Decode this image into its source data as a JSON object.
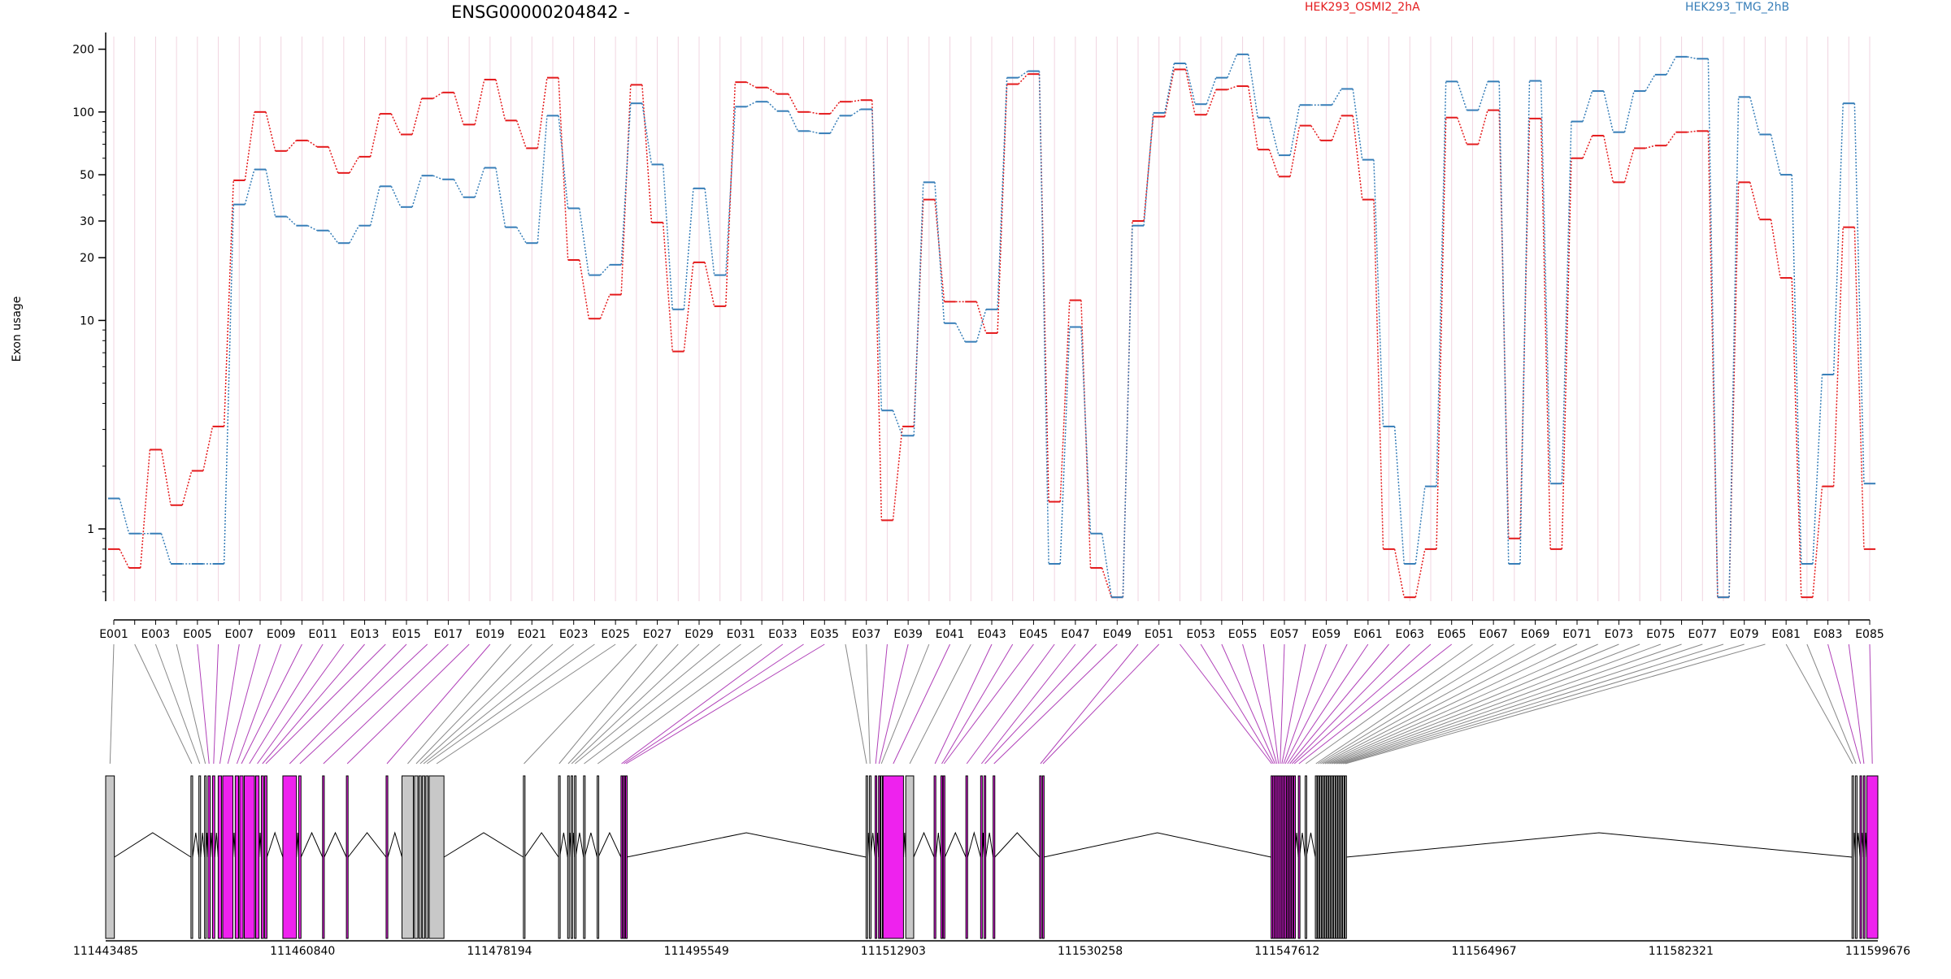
{
  "chart_data": {
    "type": "line",
    "title": "ENSG00000204842 -",
    "ylabel": "Exon usage",
    "yscale": "log",
    "ylim": [
      0.45,
      230
    ],
    "y_ticks": [
      1,
      10,
      20,
      30,
      50,
      100,
      200
    ],
    "y_tick_labels": [
      "1",
      "10",
      "20",
      "30",
      "50",
      "100",
      "200"
    ],
    "categories": [
      "E001",
      "E002",
      "E003",
      "E004",
      "E005",
      "E006",
      "E007",
      "E008",
      "E009",
      "E010",
      "E011",
      "E012",
      "E013",
      "E014",
      "E015",
      "E016",
      "E017",
      "E018",
      "E019",
      "E020",
      "E021",
      "E022",
      "E023",
      "E024",
      "E025",
      "E026",
      "E027",
      "E028",
      "E029",
      "E030",
      "E031",
      "E032",
      "E033",
      "E034",
      "E035",
      "E036",
      "E037",
      "E038",
      "E039",
      "E040",
      "E041",
      "E042",
      "E043",
      "E044",
      "E045",
      "E046",
      "E047",
      "E048",
      "E049",
      "E050",
      "E051",
      "E052",
      "E053",
      "E054",
      "E055",
      "E056",
      "E057",
      "E058",
      "E059",
      "E060",
      "E061",
      "E062",
      "E063",
      "E064",
      "E065",
      "E066",
      "E067",
      "E068",
      "E069",
      "E070",
      "E071",
      "E072",
      "E073",
      "E074",
      "E075",
      "E076",
      "E077",
      "E078",
      "E079",
      "E080",
      "E081",
      "E082",
      "E083",
      "E084",
      "E085"
    ],
    "series": [
      {
        "name": "HEK293_OSMI2_2hA",
        "color": "#e41a1c",
        "values": [
          0.8,
          0.65,
          2.4,
          1.3,
          1.9,
          3.1,
          47,
          100,
          65,
          73,
          68,
          51,
          61,
          98,
          78,
          116,
          124,
          87,
          143,
          91,
          67,
          146,
          19.5,
          10.2,
          13.3,
          135,
          29.5,
          7.1,
          19,
          11.7,
          139,
          131,
          122,
          100,
          98,
          112,
          114,
          1.1,
          3.1,
          38,
          12.3,
          12.3,
          8.7,
          136,
          152,
          1.35,
          12.5,
          0.65,
          0.47,
          30,
          95,
          160,
          97,
          128,
          133,
          66,
          49,
          86,
          73,
          96,
          38,
          0.8,
          0.47,
          0.8,
          94,
          70,
          102,
          0.9,
          93,
          0.8,
          60,
          77,
          46,
          67,
          69,
          80,
          81,
          0.47,
          46,
          30.5,
          16,
          0.47,
          1.6,
          28,
          0.8
        ]
      },
      {
        "name": "HEK293_TMG_2hB",
        "color": "#377eb8",
        "values": [
          1.4,
          0.95,
          0.95,
          0.68,
          0.68,
          0.68,
          36,
          53,
          31.5,
          28.5,
          27,
          23.5,
          28.5,
          44,
          35,
          49.5,
          47.5,
          39,
          54,
          28,
          23.5,
          96,
          34.5,
          16.5,
          18.5,
          110,
          56,
          11.3,
          43,
          16.5,
          106,
          112,
          101,
          81,
          79,
          96,
          103,
          3.7,
          2.8,
          46,
          9.7,
          7.9,
          11.3,
          146,
          157,
          0.68,
          9.3,
          0.95,
          0.47,
          28.5,
          99,
          171,
          109,
          146,
          189,
          94,
          62,
          108,
          108,
          129,
          59,
          3.1,
          0.68,
          1.6,
          140,
          102,
          140,
          0.68,
          141,
          1.65,
          90,
          126,
          80,
          126,
          151,
          184,
          180,
          0.47,
          118,
          78,
          50,
          0.68,
          5.5,
          110,
          1.65
        ]
      }
    ],
    "legend": [
      {
        "label": "HEK293_OSMI2_2hA",
        "color": "#e41a1c"
      },
      {
        "label": "HEK293_TMG_2hB",
        "color": "#377eb8"
      }
    ],
    "legend_position": "top-right",
    "genomic_axis": {
      "tick_labels": [
        "111443485",
        "111460840",
        "111478194",
        "111495549",
        "111512903",
        "111530258",
        "111547612",
        "111564967",
        "111582321",
        "111599676"
      ],
      "range": [
        111443485,
        111599676
      ]
    },
    "gene_model": {
      "colors": {
        "default": "#c8c8c8",
        "significant": "#ee22ee",
        "connector": "#b040b8",
        "connector_default": "#888888"
      },
      "exons": [
        {
          "id": "E001",
          "start": 111443485,
          "end": 111444250,
          "sig": false
        },
        {
          "id": "E002",
          "start": 111451000,
          "end": 111451150,
          "sig": false
        },
        {
          "id": "E003",
          "start": 111451700,
          "end": 111451850,
          "sig": false
        },
        {
          "id": "E004",
          "start": 111452200,
          "end": 111452340,
          "sig": false
        },
        {
          "id": "E005",
          "start": 111452500,
          "end": 111452700,
          "sig": true
        },
        {
          "id": "E006",
          "start": 111452900,
          "end": 111453100,
          "sig": true
        },
        {
          "id": "E007",
          "start": 111453400,
          "end": 111453700,
          "sig": true
        },
        {
          "id": "E008",
          "start": 111453800,
          "end": 111454700,
          "sig": true
        },
        {
          "id": "E009",
          "start": 111454900,
          "end": 111455200,
          "sig": true
        },
        {
          "id": "E010",
          "start": 111455300,
          "end": 111455600,
          "sig": true
        },
        {
          "id": "E011",
          "start": 111455700,
          "end": 111456600,
          "sig": true
        },
        {
          "id": "E012",
          "start": 111456700,
          "end": 111457000,
          "sig": true
        },
        {
          "id": "E013",
          "start": 111457200,
          "end": 111457400,
          "sig": true
        },
        {
          "id": "E014",
          "start": 111457500,
          "end": 111457700,
          "sig": true
        },
        {
          "id": "E015",
          "start": 111459100,
          "end": 111460300,
          "sig": true
        },
        {
          "id": "E016",
          "start": 111460500,
          "end": 111460700,
          "sig": true
        },
        {
          "id": "E017",
          "start": 111462600,
          "end": 111462750,
          "sig": true
        },
        {
          "id": "E018",
          "start": 111464700,
          "end": 111464850,
          "sig": true
        },
        {
          "id": "E019",
          "start": 111468200,
          "end": 111468350,
          "sig": true
        },
        {
          "id": "E020",
          "start": 111469600,
          "end": 111470600,
          "sig": false
        },
        {
          "id": "E021",
          "start": 111470700,
          "end": 111471000,
          "sig": false
        },
        {
          "id": "E022",
          "start": 111471100,
          "end": 111471300,
          "sig": false
        },
        {
          "id": "E023",
          "start": 111471400,
          "end": 111471600,
          "sig": false
        },
        {
          "id": "E024",
          "start": 111471700,
          "end": 111471900,
          "sig": false
        },
        {
          "id": "E025",
          "start": 111472000,
          "end": 111473300,
          "sig": false
        },
        {
          "id": "E026",
          "start": 111480300,
          "end": 111480400,
          "sig": false
        },
        {
          "id": "E027",
          "start": 111483400,
          "end": 111483500,
          "sig": false
        },
        {
          "id": "E028",
          "start": 111484200,
          "end": 111484300,
          "sig": false
        },
        {
          "id": "E029",
          "start": 111484500,
          "end": 111484600,
          "sig": false
        },
        {
          "id": "E030",
          "start": 111484800,
          "end": 111484900,
          "sig": false
        },
        {
          "id": "E031",
          "start": 111485600,
          "end": 111485700,
          "sig": false
        },
        {
          "id": "E032",
          "start": 111486800,
          "end": 111486900,
          "sig": false
        },
        {
          "id": "E033",
          "start": 111488900,
          "end": 111489000,
          "sig": true
        },
        {
          "id": "E034",
          "start": 111489100,
          "end": 111489200,
          "sig": true
        },
        {
          "id": "E035",
          "start": 111489300,
          "end": 111489400,
          "sig": true
        },
        {
          "id": "E036",
          "start": 111510500,
          "end": 111510600,
          "sig": false
        },
        {
          "id": "E037",
          "start": 111510800,
          "end": 111510900,
          "sig": false
        },
        {
          "id": "E038",
          "start": 111511300,
          "end": 111511400,
          "sig": true
        },
        {
          "id": "E039",
          "start": 111511600,
          "end": 111511700,
          "sig": true
        },
        {
          "id": "E040",
          "start": 111511800,
          "end": 111511900,
          "sig": false
        },
        {
          "id": "E041",
          "start": 111512000,
          "end": 111513800,
          "sig": true
        },
        {
          "id": "E042",
          "start": 111514000,
          "end": 111514700,
          "sig": false
        },
        {
          "id": "E043",
          "start": 111516500,
          "end": 111516650,
          "sig": true
        },
        {
          "id": "E044",
          "start": 111517100,
          "end": 111517250,
          "sig": true
        },
        {
          "id": "E045",
          "start": 111517300,
          "end": 111517450,
          "sig": true
        },
        {
          "id": "E046",
          "start": 111519300,
          "end": 111519450,
          "sig": true
        },
        {
          "id": "E047",
          "start": 111520600,
          "end": 111520750,
          "sig": true
        },
        {
          "id": "E048",
          "start": 111520900,
          "end": 111521050,
          "sig": true
        },
        {
          "id": "E049",
          "start": 111521700,
          "end": 111521850,
          "sig": true
        },
        {
          "id": "E050",
          "start": 111525800,
          "end": 111525950,
          "sig": true
        },
        {
          "id": "E051",
          "start": 111526050,
          "end": 111526150,
          "sig": true
        },
        {
          "id": "E052",
          "start": 111546200,
          "end": 111546300,
          "sig": true
        },
        {
          "id": "E053",
          "start": 111546350,
          "end": 111546450,
          "sig": true
        },
        {
          "id": "E054",
          "start": 111546500,
          "end": 111546600,
          "sig": true
        },
        {
          "id": "E055",
          "start": 111546650,
          "end": 111546750,
          "sig": true
        },
        {
          "id": "E056",
          "start": 111546800,
          "end": 111546900,
          "sig": true
        },
        {
          "id": "E057",
          "start": 111546950,
          "end": 111547050,
          "sig": true
        },
        {
          "id": "E058",
          "start": 111547100,
          "end": 111547200,
          "sig": true
        },
        {
          "id": "E059",
          "start": 111547250,
          "end": 111547350,
          "sig": true
        },
        {
          "id": "E060",
          "start": 111547400,
          "end": 111547500,
          "sig": true
        },
        {
          "id": "E061",
          "start": 111547600,
          "end": 111547700,
          "sig": true
        },
        {
          "id": "E062",
          "start": 111547800,
          "end": 111547900,
          "sig": true
        },
        {
          "id": "E063",
          "start": 111548000,
          "end": 111548100,
          "sig": true
        },
        {
          "id": "E064",
          "start": 111548200,
          "end": 111548300,
          "sig": true
        },
        {
          "id": "E065",
          "start": 111548600,
          "end": 111548700,
          "sig": true
        },
        {
          "id": "E066",
          "start": 111549200,
          "end": 111549300,
          "sig": false
        },
        {
          "id": "E067",
          "start": 111550100,
          "end": 111550200,
          "sig": false
        },
        {
          "id": "E068",
          "start": 111550300,
          "end": 111550400,
          "sig": false
        },
        {
          "id": "E069",
          "start": 111550500,
          "end": 111550600,
          "sig": false
        },
        {
          "id": "E070",
          "start": 111550700,
          "end": 111550800,
          "sig": false
        },
        {
          "id": "E071",
          "start": 111550900,
          "end": 111551000,
          "sig": false
        },
        {
          "id": "E072",
          "start": 111551100,
          "end": 111551200,
          "sig": false
        },
        {
          "id": "E073",
          "start": 111551300,
          "end": 111551400,
          "sig": false
        },
        {
          "id": "E074",
          "start": 111551500,
          "end": 111551600,
          "sig": false
        },
        {
          "id": "E075",
          "start": 111551700,
          "end": 111551800,
          "sig": false
        },
        {
          "id": "E076",
          "start": 111551900,
          "end": 111552000,
          "sig": false
        },
        {
          "id": "E077",
          "start": 111552100,
          "end": 111552200,
          "sig": false
        },
        {
          "id": "E078",
          "start": 111552300,
          "end": 111552400,
          "sig": false
        },
        {
          "id": "E079",
          "start": 111552500,
          "end": 111552600,
          "sig": false
        },
        {
          "id": "E080",
          "start": 111552700,
          "end": 111552800,
          "sig": false
        },
        {
          "id": "E081",
          "start": 111597400,
          "end": 111597500,
          "sig": false
        },
        {
          "id": "E082",
          "start": 111597700,
          "end": 111597800,
          "sig": false
        },
        {
          "id": "E083",
          "start": 111598100,
          "end": 111598200,
          "sig": true
        },
        {
          "id": "E084",
          "start": 111598400,
          "end": 111598500,
          "sig": true
        },
        {
          "id": "E085",
          "start": 111598700,
          "end": 111599676,
          "sig": true
        }
      ]
    }
  }
}
